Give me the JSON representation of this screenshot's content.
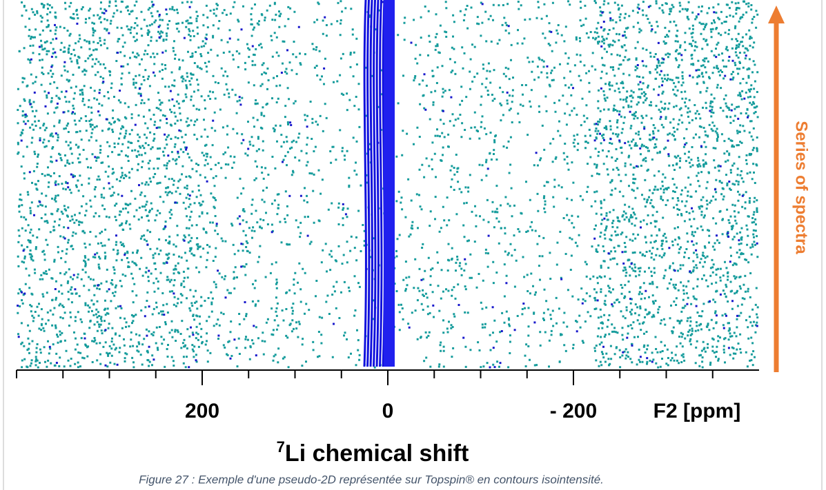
{
  "figure": {
    "x_axis": {
      "label_sup": "7",
      "label": "Li chemical shift",
      "unit_label": "F2 [ppm]",
      "xlim": [
        400,
        -400
      ],
      "xticks": [
        200,
        0,
        {
          "value": -200,
          "label": "- 200"
        }
      ],
      "minor_xticks": [
        400,
        350,
        300,
        250,
        150,
        100,
        50,
        -50,
        -100,
        -150,
        -250,
        -300,
        -350
      ]
    },
    "y_axis_label": "Series of spectra",
    "caption": "Figure 27 : Exemple d'une pseudo-2D représentée sur Topspin® en contours isointensité."
  }
}
